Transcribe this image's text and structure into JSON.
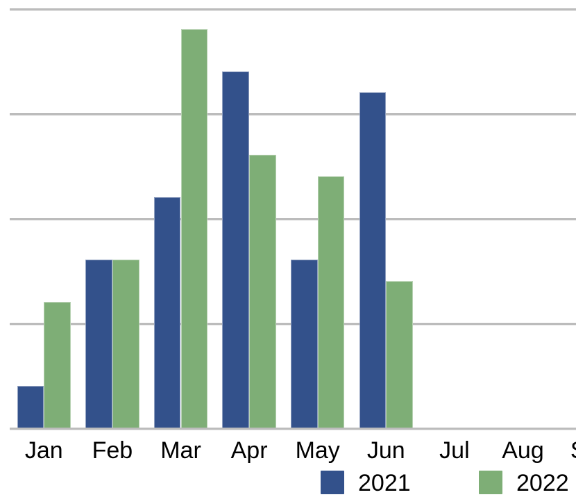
{
  "chart_data": {
    "type": "bar",
    "title": "",
    "categories": [
      "Jan",
      "Feb",
      "Mar",
      "Apr",
      "May",
      "Jun",
      "Jul",
      "Aug",
      "Sep"
    ],
    "series": [
      {
        "name": "2021",
        "color": "#33518B",
        "values": [
          10,
          40,
          55,
          85,
          40,
          80,
          null,
          null,
          null
        ]
      },
      {
        "name": "2022",
        "color": "#7EAE76",
        "values": [
          30,
          40,
          95,
          65,
          60,
          35,
          null,
          null,
          null
        ]
      }
    ],
    "ylim": [
      0,
      100
    ],
    "gridline_interval": 25,
    "grid": "horizontal-only",
    "gridline_color": "#BCBCBC",
    "label_color": "#000000",
    "legend_position": "bottom",
    "y_axis_labels_visible": false,
    "notes": "right edge of chart clipped mid-Sep label; no bars for Jul-Sep"
  }
}
